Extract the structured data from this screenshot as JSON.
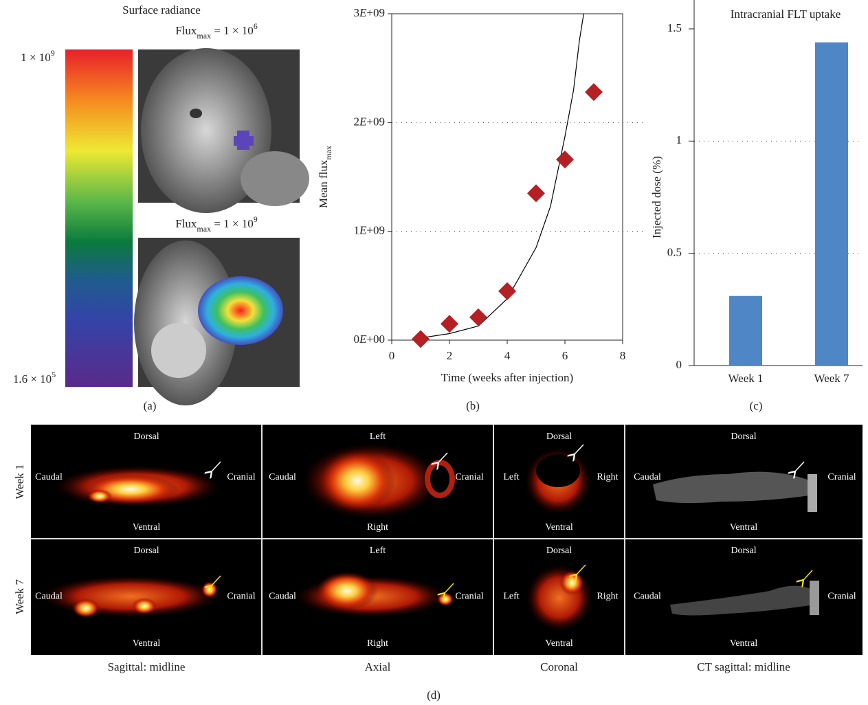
{
  "panel_a": {
    "title": "Surface radiance",
    "scale_max": {
      "text": "1 × 10",
      "sup": "9"
    },
    "scale_min": {
      "text": "1.6 × 10",
      "sup": "5"
    },
    "images": [
      {
        "label": "Flux",
        "sub": "max",
        "text": " = 1 × 10",
        "sup": "6"
      },
      {
        "label": "Flux",
        "sub": "max",
        "text": " = 1 × 10",
        "sup": "9"
      }
    ],
    "caption": "(a)"
  },
  "chart_data": [
    {
      "type": "scatter",
      "caption": "(b)",
      "x_label": "Time (weeks after injection)",
      "y_label": "Mean flux",
      "y_label_sub": "max",
      "x": [
        1,
        2,
        3,
        4,
        5,
        6,
        7
      ],
      "values": [
        10000000,
        150000000,
        210000000,
        450000000,
        1350000000,
        1660000000,
        2280000000
      ],
      "color": "#b52025",
      "fit": {
        "x": [
          1,
          2,
          3,
          4,
          5,
          5.5,
          6,
          6.3,
          6.5,
          6.65
        ],
        "values": [
          20000000,
          60000000,
          130000000,
          380000000,
          850000000,
          1230000000,
          1870000000,
          2300000000,
          2750000000,
          3000000000
        ],
        "color": "#000000"
      },
      "xlim": [
        0,
        8
      ],
      "xticks": [
        0,
        2,
        4,
        6,
        8
      ],
      "ylim": [
        0,
        3000000000
      ],
      "yticks": [
        {
          "value": 0,
          "label": "0E+00"
        },
        {
          "value": 1000000000,
          "label": "1E+09"
        },
        {
          "value": 2000000000,
          "label": "2E+09"
        },
        {
          "value": 3000000000,
          "label": "3E+09"
        }
      ],
      "grid": true
    },
    {
      "type": "bar",
      "caption": "(c)",
      "title": "Intracranial FLT uptake",
      "y_label": "Injected dose (%)",
      "categories": [
        "Week 1",
        "Week 7"
      ],
      "values": [
        0.31,
        1.44
      ],
      "color": "#4f86c6",
      "ylim": [
        0,
        1.5
      ],
      "yticks": [
        0,
        0.5,
        1,
        1.5
      ],
      "grid": true
    }
  ],
  "panel_d": {
    "rows": [
      "Week 1",
      "Week 7"
    ],
    "columns": [
      {
        "title": "Sagittal: midline",
        "top": "Dorsal",
        "bottom": "Ventral",
        "left": "Caudal",
        "right": "Cranial"
      },
      {
        "title": "Axial",
        "top": "Left",
        "bottom": "Right",
        "left": "Caudal",
        "right": "Cranial"
      },
      {
        "title": "Coronal",
        "top": "Dorsal",
        "bottom": "Ventral",
        "left": "Left",
        "right": "Right"
      },
      {
        "title": "CT sagittal: midline",
        "top": "Dorsal",
        "bottom": "Ventral",
        "left": "Caudal",
        "right": "Cranial"
      }
    ],
    "caption": "(d)"
  }
}
